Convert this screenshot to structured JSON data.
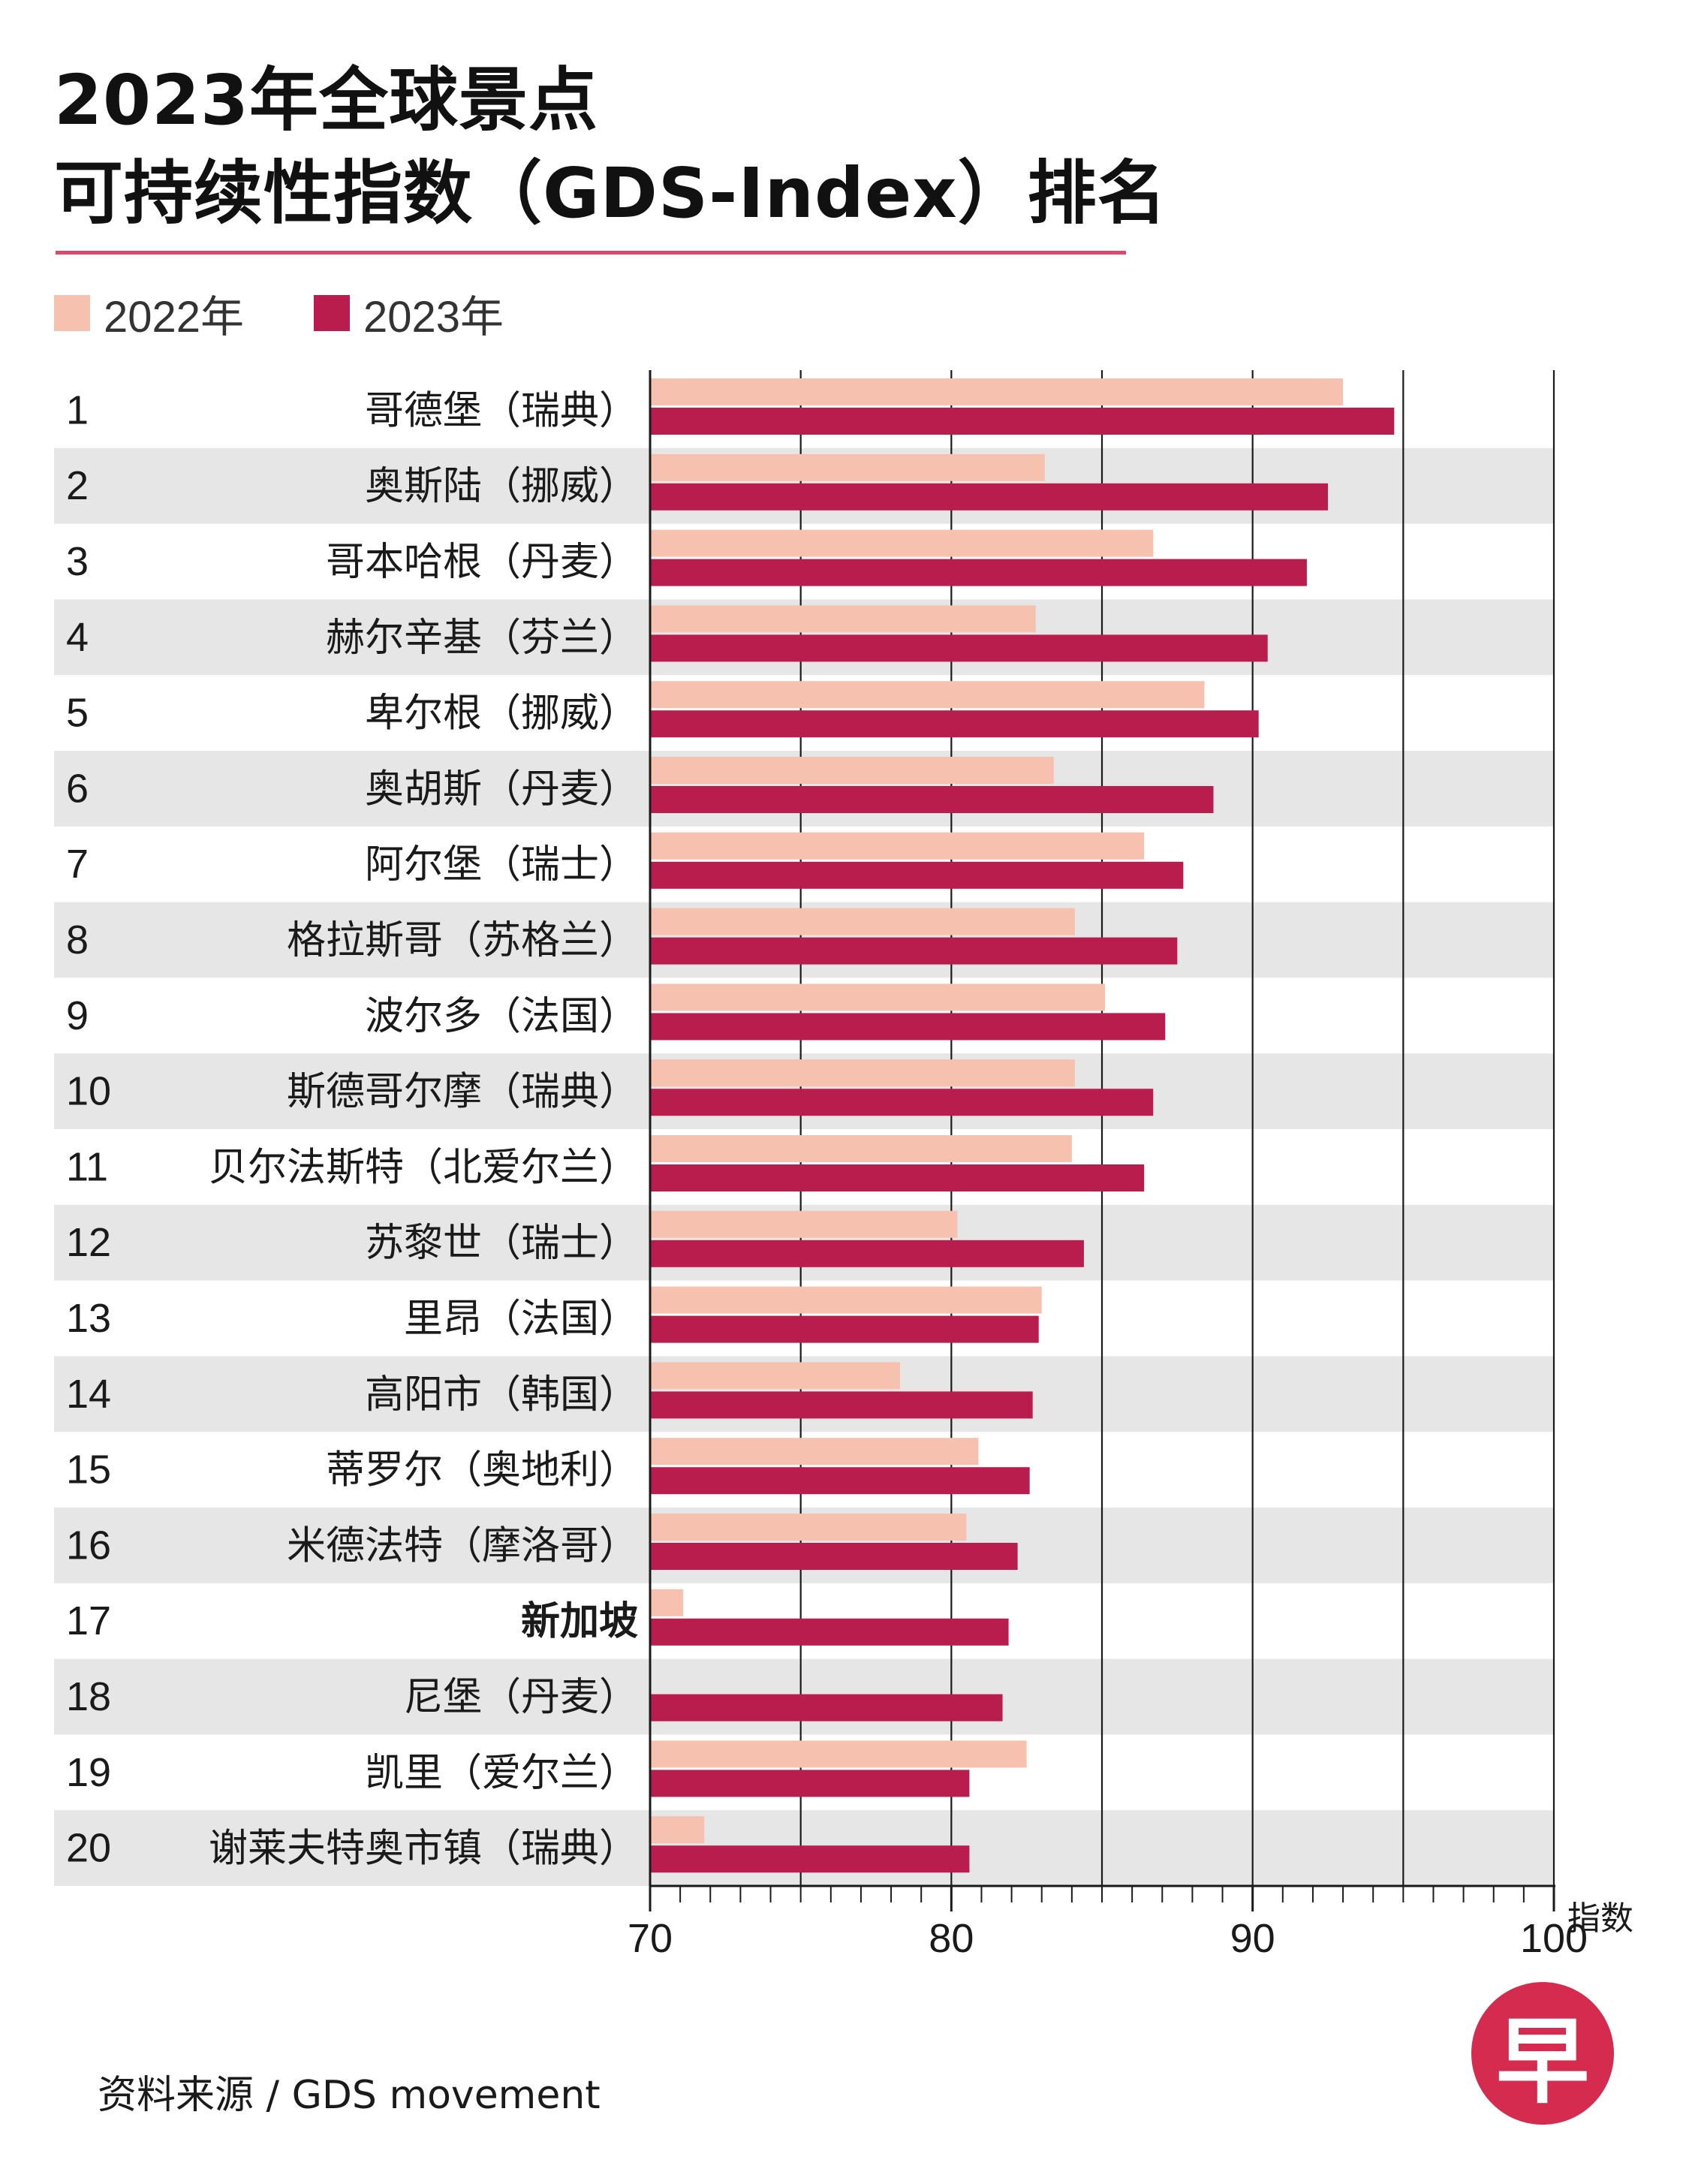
{
  "header": {
    "title_line_1": "2023年全球景点",
    "title_line_2": "可持续性指数（GDS-Index）排名"
  },
  "legend": {
    "label_2022": "2022年",
    "label_2023": "2023年"
  },
  "colors": {
    "bar_2022": "#f7c1b0",
    "bar_2023": "#b81d4e",
    "row_band": "#e7e6e6",
    "title_rule": "#e0476a",
    "logo_bg": "#d52b4f"
  },
  "chart_data": {
    "type": "bar",
    "orientation": "horizontal",
    "title": "2023年全球景点可持续性指数（GDS-Index）排名",
    "xlabel": "指数",
    "xlim": [
      70,
      100
    ],
    "xticks": [
      70,
      80,
      90,
      100
    ],
    "grid": true,
    "legend_position": "top-left",
    "categories": [
      {
        "rank": "1",
        "name": "哥德堡",
        "country": "（瑞典）"
      },
      {
        "rank": "2",
        "name": "奥斯陆",
        "country": "（挪威）"
      },
      {
        "rank": "3",
        "name": "哥本哈根",
        "country": "（丹麦）"
      },
      {
        "rank": "4",
        "name": "赫尔辛基",
        "country": "（芬兰）"
      },
      {
        "rank": "5",
        "name": "卑尔根",
        "country": "（挪威）"
      },
      {
        "rank": "6",
        "name": "奥胡斯",
        "country": "（丹麦）"
      },
      {
        "rank": "7",
        "name": "阿尔堡",
        "country": "（瑞士）"
      },
      {
        "rank": "8",
        "name": "格拉斯哥",
        "country": "（苏格兰）"
      },
      {
        "rank": "9",
        "name": "波尔多",
        "country": "（法国）"
      },
      {
        "rank": "10",
        "name": "斯德哥尔摩",
        "country": "（瑞典）"
      },
      {
        "rank": "11",
        "name": "贝尔法斯特",
        "country": "（北爱尔兰）"
      },
      {
        "rank": "12",
        "name": "苏黎世",
        "country": "（瑞士）"
      },
      {
        "rank": "13",
        "name": "里昂",
        "country": "（法国）"
      },
      {
        "rank": "14",
        "name": "高阳市",
        "country": "（韩国）"
      },
      {
        "rank": "15",
        "name": "蒂罗尔",
        "country": "（奥地利）"
      },
      {
        "rank": "16",
        "name": "米德法特",
        "country": "（摩洛哥）"
      },
      {
        "rank": "17",
        "name": "新加坡",
        "country": "",
        "highlight": true
      },
      {
        "rank": "18",
        "name": "尼堡",
        "country": "（丹麦）"
      },
      {
        "rank": "19",
        "name": "凯里",
        "country": "（爱尔兰）"
      },
      {
        "rank": "20",
        "name": "谢莱夫特奥市镇",
        "country": "（瑞典）"
      }
    ],
    "series": [
      {
        "name": "2022年",
        "values": [
          93.0,
          83.1,
          86.7,
          82.8,
          88.4,
          83.4,
          86.4,
          84.1,
          85.1,
          84.1,
          84.0,
          80.2,
          83.0,
          78.3,
          80.9,
          80.5,
          71.1,
          null,
          82.5,
          71.8
        ]
      },
      {
        "name": "2023年",
        "values": [
          94.7,
          92.5,
          91.8,
          90.5,
          90.2,
          88.7,
          87.7,
          87.5,
          87.1,
          86.7,
          86.4,
          84.4,
          82.9,
          82.7,
          82.6,
          82.2,
          81.9,
          81.7,
          80.6,
          80.6
        ]
      }
    ]
  },
  "source": "资料来源 / GDS movement",
  "logo": {
    "char": "早"
  }
}
